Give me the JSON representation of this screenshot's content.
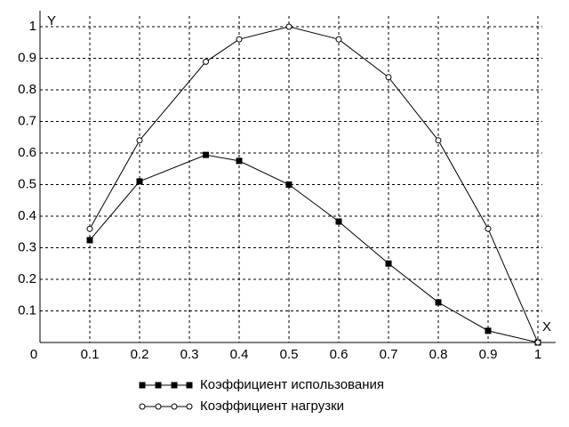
{
  "chart_data": {
    "type": "line",
    "x": [
      0.1,
      0.2,
      0.333,
      0.4,
      0.5,
      0.6,
      0.7,
      0.8,
      0.9,
      1
    ],
    "series": [
      {
        "name": "Коэффициент использования",
        "color": "#000000",
        "marker": "square",
        "values": [
          0.324,
          0.51,
          0.594,
          0.575,
          0.5,
          0.383,
          0.25,
          0.127,
          0.037,
          0
        ]
      },
      {
        "name": "Коэффициент нагрузки",
        "color": "#000000",
        "marker": "circle",
        "values": [
          0.36,
          0.64,
          0.889,
          0.96,
          1,
          0.96,
          0.84,
          0.64,
          0.36,
          0
        ]
      }
    ],
    "xlabel": "X",
    "ylabel": "Y",
    "xlim": [
      0,
      1
    ],
    "ylim": [
      0,
      1
    ],
    "xticks": [
      0,
      0.1,
      0.2,
      0.3,
      0.4,
      0.5,
      0.6,
      0.7,
      0.8,
      0.9,
      1
    ],
    "yticks": [
      0.1,
      0.2,
      0.3,
      0.4,
      0.5,
      0.6,
      0.7,
      0.8,
      0.9,
      1
    ],
    "grid": true,
    "legend": "bottom"
  }
}
